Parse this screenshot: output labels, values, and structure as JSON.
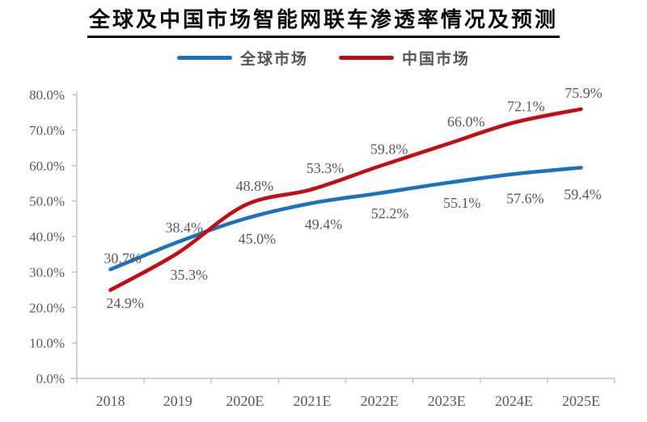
{
  "title": "全球及中国市场智能网联车渗透率情况及预测",
  "legend": {
    "items": [
      {
        "label": "全球市场",
        "color": "#1b74bb"
      },
      {
        "label": "中国市场",
        "color": "#c40d12"
      }
    ]
  },
  "chart_data": {
    "type": "line",
    "title": "全球及中国市场智能网联车渗透率情况及预测",
    "categories": [
      "2018",
      "2019",
      "2020E",
      "2021E",
      "2022E",
      "2023E",
      "2024E",
      "2025E"
    ],
    "series": [
      {
        "name": "全球市场",
        "color": "#1b74bb",
        "values": [
          30.7,
          38.4,
          45.0,
          49.4,
          52.2,
          55.1,
          57.6,
          59.4
        ],
        "point_labels": [
          "30.7%",
          "38.4%",
          "45.0%",
          "49.4%",
          "52.2%",
          "55.1%",
          "57.6%",
          "59.4%"
        ]
      },
      {
        "name": "中国市场",
        "color": "#c40d12",
        "values": [
          24.9,
          35.3,
          48.8,
          53.3,
          59.8,
          66.0,
          72.1,
          75.9
        ],
        "point_labels": [
          "24.9%",
          "35.3%",
          "48.8%",
          "53.3%",
          "59.8%",
          "66.0%",
          "72.1%",
          "75.9%"
        ]
      }
    ],
    "y_axis": {
      "min": 0,
      "max": 80,
      "step": 10,
      "tick_labels": [
        "0.0%",
        "10.0%",
        "20.0%",
        "30.0%",
        "40.0%",
        "50.0%",
        "60.0%",
        "70.0%",
        "80.0%"
      ]
    },
    "grid": false,
    "legend_position": "top",
    "axis_color": "#bfbfbf",
    "label_color": "#595959",
    "line_smoothing": true
  }
}
